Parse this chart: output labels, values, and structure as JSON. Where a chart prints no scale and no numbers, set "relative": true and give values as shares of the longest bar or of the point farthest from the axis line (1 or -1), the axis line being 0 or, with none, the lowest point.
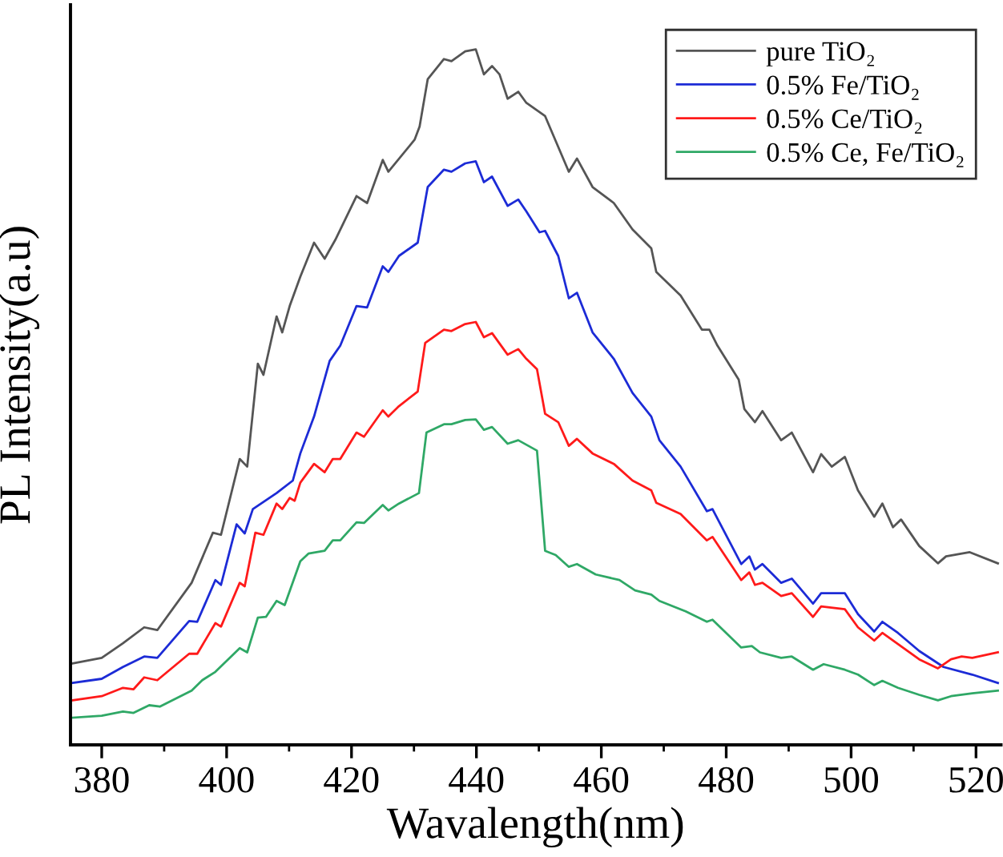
{
  "chart_data": {
    "type": "line",
    "relative": true,
    "xlabel": "Wavalength(nm)",
    "ylabel": "PL Intensity(a.u)",
    "xlim": [
      375,
      524
    ],
    "xticks": [
      380,
      {
        "value": 390,
        "label": null
      },
      400,
      {
        "value": 410,
        "label": null
      },
      420,
      {
        "value": 430,
        "label": null
      },
      440,
      {
        "value": 450,
        "label": null
      },
      460,
      {
        "value": 470,
        "label": null
      },
      480,
      {
        "value": 490,
        "label": null
      },
      500,
      {
        "value": 510,
        "label": null
      },
      520
    ],
    "legend": "top right",
    "grid": false,
    "marker": "none",
    "line_style": "solid",
    "series": [
      {
        "name": "pure TiO₂",
        "color": "#555555",
        "x": [
          375.3,
          380,
          383.4,
          386.8,
          388.9,
          394.4,
          397.8,
          399.1,
          402.1,
          403.3,
          405,
          405.9,
          408,
          408.9,
          410.1,
          411.8,
          414,
          415.7,
          417.4,
          420.8,
          422.5,
          425,
          425.9,
          430.1,
          430.9,
          432.2,
          434.8,
          436,
          438.2,
          439.9,
          441.2,
          442.5,
          443.7,
          445,
          446.7,
          448,
          451,
          454.8,
          456.1,
          458.6,
          462,
          465,
          468,
          468.8,
          472.7,
          476.1,
          477.3,
          478.6,
          482,
          482.9,
          484.6,
          485.8,
          488.8,
          490.5,
          493.9,
          495.2,
          496.9,
          499,
          501.1,
          503.7,
          505,
          506.7,
          508,
          510.9,
          513.9,
          515.2,
          519,
          523.5
        ],
        "values": [
          0.117,
          0.125,
          0.146,
          0.169,
          0.165,
          0.233,
          0.305,
          0.302,
          0.411,
          0.4,
          0.548,
          0.532,
          0.616,
          0.593,
          0.631,
          0.673,
          0.722,
          0.699,
          0.726,
          0.789,
          0.779,
          0.841,
          0.824,
          0.87,
          0.889,
          0.957,
          0.986,
          0.983,
          0.997,
          1.0,
          0.964,
          0.976,
          0.964,
          0.929,
          0.939,
          0.923,
          0.904,
          0.824,
          0.843,
          0.802,
          0.779,
          0.741,
          0.714,
          0.68,
          0.646,
          0.597,
          0.597,
          0.574,
          0.525,
          0.483,
          0.464,
          0.48,
          0.438,
          0.449,
          0.392,
          0.418,
          0.4,
          0.414,
          0.366,
          0.328,
          0.347,
          0.313,
          0.324,
          0.286,
          0.261,
          0.271,
          0.277,
          0.261
        ]
      },
      {
        "name": "0.5% Fe/TiO₂",
        "color": "#1c2bd6",
        "x": [
          375.3,
          380,
          383.4,
          386.8,
          388.9,
          394,
          395.3,
          398.2,
          399.1,
          401.6,
          402.9,
          404.2,
          408,
          410.6,
          411.8,
          414,
          416.5,
          418.2,
          420.8,
          422.5,
          425,
          425.9,
          427.6,
          430.6,
          432.2,
          434.8,
          436,
          438.2,
          439.9,
          441.2,
          442.5,
          445,
          446.7,
          448,
          450.1,
          451,
          453.1,
          454.8,
          456.1,
          458.6,
          462,
          465,
          468,
          469.3,
          472.7,
          476.9,
          477.8,
          482.4,
          483.7,
          484.6,
          485.8,
          488.8,
          490.5,
          493.9,
          495.2,
          499,
          501.1,
          503.7,
          505,
          507.5,
          510.9,
          514.8,
          519.4,
          523.5
        ],
        "values": [
          0.089,
          0.095,
          0.112,
          0.127,
          0.125,
          0.178,
          0.177,
          0.237,
          0.23,
          0.317,
          0.304,
          0.339,
          0.362,
          0.38,
          0.419,
          0.472,
          0.552,
          0.574,
          0.631,
          0.629,
          0.688,
          0.68,
          0.703,
          0.722,
          0.802,
          0.827,
          0.824,
          0.836,
          0.839,
          0.809,
          0.817,
          0.775,
          0.784,
          0.767,
          0.737,
          0.739,
          0.703,
          0.642,
          0.65,
          0.593,
          0.555,
          0.506,
          0.472,
          0.438,
          0.4,
          0.336,
          0.339,
          0.26,
          0.271,
          0.252,
          0.26,
          0.233,
          0.239,
          0.203,
          0.218,
          0.218,
          0.188,
          0.163,
          0.177,
          0.161,
          0.135,
          0.112,
          0.101,
          0.089
        ]
      },
      {
        "name": "0.5% Ce/TiO₂",
        "color": "#ff1a1a",
        "x": [
          375.3,
          380,
          383.4,
          385.1,
          386.8,
          388.9,
          394,
          395.3,
          398.2,
          399.1,
          402.1,
          402.9,
          404.6,
          405.9,
          408,
          408.9,
          410.1,
          410.9,
          411.8,
          414,
          415.7,
          417,
          418.2,
          420.8,
          422,
          425,
          425.9,
          427.6,
          430.6,
          431.8,
          434.8,
          436,
          438.2,
          439.9,
          441.2,
          442.5,
          445,
          446.7,
          448,
          449.7,
          451,
          453.1,
          454.8,
          456.1,
          458.6,
          462,
          465,
          468,
          468.8,
          472.7,
          476.9,
          477.8,
          482.4,
          483.7,
          484.6,
          485.8,
          488.8,
          490.5,
          493.9,
          495.2,
          499,
          501.1,
          503.7,
          505,
          507.5,
          510.9,
          513.9,
          516,
          517.7,
          519.4,
          523.5
        ],
        "values": [
          0.064,
          0.07,
          0.082,
          0.08,
          0.097,
          0.093,
          0.131,
          0.131,
          0.175,
          0.17,
          0.233,
          0.228,
          0.305,
          0.302,
          0.347,
          0.339,
          0.355,
          0.351,
          0.377,
          0.404,
          0.392,
          0.411,
          0.411,
          0.449,
          0.443,
          0.481,
          0.472,
          0.487,
          0.508,
          0.578,
          0.597,
          0.595,
          0.605,
          0.608,
          0.586,
          0.592,
          0.561,
          0.569,
          0.555,
          0.54,
          0.476,
          0.464,
          0.43,
          0.44,
          0.419,
          0.404,
          0.38,
          0.366,
          0.348,
          0.332,
          0.294,
          0.299,
          0.237,
          0.248,
          0.23,
          0.233,
          0.214,
          0.218,
          0.184,
          0.199,
          0.195,
          0.169,
          0.15,
          0.161,
          0.145,
          0.123,
          0.11,
          0.123,
          0.127,
          0.125,
          0.133
        ]
      },
      {
        "name": "0.5% Ce, Fe/TiO₂",
        "color": "#2fa866",
        "x": [
          375.3,
          380,
          383.4,
          385.1,
          387.6,
          389.3,
          394.4,
          396.1,
          398.2,
          402.1,
          403.3,
          405,
          406.3,
          408,
          409.3,
          411.8,
          413.1,
          415.7,
          417,
          418.2,
          420.8,
          422,
          425,
          425.9,
          427.6,
          430.8,
          432,
          434.8,
          436,
          438.2,
          439.9,
          441.2,
          442.5,
          445,
          446.7,
          449.7,
          451,
          452.7,
          454.8,
          456.1,
          459.1,
          462.9,
          465.4,
          468,
          469.3,
          473.5,
          476.9,
          477.8,
          482.4,
          484.1,
          485.4,
          488.8,
          490.5,
          493.9,
          495.6,
          499,
          501.1,
          503.7,
          505,
          507.5,
          510.9,
          513.9,
          516,
          519.4,
          523.5
        ],
        "values": [
          0.039,
          0.042,
          0.048,
          0.046,
          0.057,
          0.055,
          0.078,
          0.093,
          0.105,
          0.139,
          0.133,
          0.183,
          0.184,
          0.207,
          0.201,
          0.264,
          0.275,
          0.279,
          0.294,
          0.294,
          0.32,
          0.319,
          0.345,
          0.337,
          0.347,
          0.362,
          0.449,
          0.461,
          0.461,
          0.467,
          0.468,
          0.453,
          0.457,
          0.433,
          0.438,
          0.423,
          0.279,
          0.273,
          0.256,
          0.26,
          0.245,
          0.237,
          0.222,
          0.216,
          0.207,
          0.192,
          0.177,
          0.18,
          0.14,
          0.142,
          0.133,
          0.125,
          0.127,
          0.108,
          0.116,
          0.108,
          0.101,
          0.086,
          0.092,
          0.082,
          0.072,
          0.064,
          0.07,
          0.074,
          0.078
        ]
      }
    ]
  }
}
